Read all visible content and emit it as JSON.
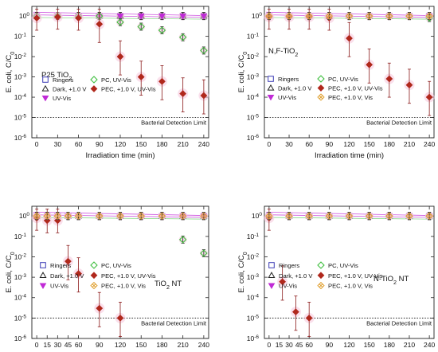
{
  "colors": {
    "ringers": "#3b3bb5",
    "dark": "#222222",
    "uvvis": "#c02ad6",
    "pc": "#3fbf3f",
    "pec_uvvis": "#b0281c",
    "pec_vis": "#e0a030",
    "halo": "#f6c6dd",
    "errorbar": "#8b1a1a"
  },
  "chart_data": [
    {
      "type": "scatter",
      "title": "P25 TiO2",
      "title_display": [
        "P25 TiO",
        "2"
      ],
      "xlabel": "Irradiation time (min)",
      "ylabel": "E. coli, C/C0",
      "ylabel_display": [
        "E. coli, C/C",
        "0"
      ],
      "y_scale": "log",
      "ylim": [
        1e-06,
        3
      ],
      "xlim": [
        0,
        240
      ],
      "x_ticks": [
        0,
        30,
        60,
        90,
        120,
        150,
        180,
        210,
        240
      ],
      "y_ticks": [
        1,
        0.1,
        0.01,
        0.001,
        0.0001,
        1e-05,
        1e-06
      ],
      "y_tick_labels": [
        [
          "10",
          "0"
        ],
        [
          "10",
          "-1"
        ],
        [
          "10",
          "-2"
        ],
        [
          "10",
          "-3"
        ],
        [
          "10",
          "-4"
        ],
        [
          "10",
          "-5"
        ],
        [
          "10",
          "-6"
        ]
      ],
      "detection_limit": 1e-05,
      "detection_limit_label": "Bacterial Detection Limit",
      "legend_columns": 2,
      "series": [
        {
          "name": "Ringers",
          "key": "ringers",
          "marker": "square",
          "x": [
            0,
            30,
            60,
            90,
            120,
            150,
            180,
            210,
            240
          ],
          "y": [
            1,
            1,
            1,
            1,
            1,
            1,
            1,
            1,
            1
          ]
        },
        {
          "name": "Dark, +1.0 V",
          "key": "dark",
          "marker": "triangle-up",
          "x": [
            0,
            30,
            60,
            90,
            120,
            150,
            180,
            210,
            240
          ],
          "y": [
            1,
            1,
            1,
            1,
            1,
            1,
            1,
            1,
            1
          ]
        },
        {
          "name": "UV-Vis",
          "key": "uvvis",
          "marker": "triangle-down",
          "x": [
            0,
            30,
            60,
            90,
            120,
            150,
            180,
            210,
            240
          ],
          "y": [
            1,
            1,
            1,
            1,
            1,
            1,
            1,
            1,
            1
          ]
        },
        {
          "name": "PC, UV-Vis",
          "key": "pc",
          "marker": "diamond-open",
          "x": [
            0,
            30,
            60,
            90,
            120,
            150,
            180,
            210,
            240
          ],
          "y": [
            1,
            1,
            1,
            1,
            0.5,
            0.3,
            0.2,
            0.09,
            0.02
          ]
        },
        {
          "name": "PEC, +1.0 V, UV-Vis",
          "key": "pec_uvvis",
          "marker": "diamond",
          "x": [
            0,
            30,
            60,
            90,
            120,
            150,
            180,
            210,
            240
          ],
          "y": [
            0.8,
            0.9,
            0.8,
            0.4,
            0.01,
            0.001,
            0.0006,
            0.00015,
            0.00012
          ]
        }
      ]
    },
    {
      "type": "scatter",
      "title": "N,F-TiO2",
      "title_display": [
        "N,F-TiO",
        "2"
      ],
      "xlabel": "Irradiation time (min)",
      "ylabel": "E. coli, C/C0",
      "ylabel_display": [
        "E. coli, C/C",
        "0"
      ],
      "y_scale": "log",
      "ylim": [
        1e-06,
        3
      ],
      "xlim": [
        0,
        240
      ],
      "x_ticks": [
        0,
        30,
        60,
        90,
        120,
        150,
        180,
        210,
        240
      ],
      "y_ticks": [
        1,
        0.1,
        0.01,
        0.001,
        0.0001,
        1e-05,
        1e-06
      ],
      "y_tick_labels": [
        [
          "10",
          "0"
        ],
        [
          "10",
          "-1"
        ],
        [
          "10",
          "-2"
        ],
        [
          "10",
          "-3"
        ],
        [
          "10",
          "-4"
        ],
        [
          "10",
          "-5"
        ],
        [
          "10",
          "-6"
        ]
      ],
      "detection_limit": 1e-05,
      "detection_limit_label": "Bacterial Detection Limit",
      "legend_columns": 2,
      "series": [
        {
          "name": "Ringers",
          "key": "ringers",
          "marker": "square",
          "x": [
            0,
            30,
            60,
            90,
            120,
            150,
            180,
            210,
            240
          ],
          "y": [
            1,
            1,
            1,
            1,
            1,
            1,
            1,
            1,
            1
          ]
        },
        {
          "name": "Dark, +1.0 V",
          "key": "dark",
          "marker": "triangle-up",
          "x": [
            0,
            30,
            60,
            90,
            120,
            150,
            180,
            210,
            240
          ],
          "y": [
            1,
            1,
            1,
            1,
            1,
            1,
            1,
            1,
            1
          ]
        },
        {
          "name": "UV-Vis",
          "key": "uvvis",
          "marker": "triangle-down",
          "x": [
            0,
            30,
            60,
            90,
            120,
            150,
            180,
            210,
            240
          ],
          "y": [
            1,
            1,
            1,
            1,
            1,
            1,
            1,
            1,
            1
          ]
        },
        {
          "name": "PC, UV-Vis",
          "key": "pc",
          "marker": "diamond-open",
          "x": [
            0,
            30,
            60,
            90,
            120,
            150,
            180,
            210,
            240
          ],
          "y": [
            1,
            1,
            1,
            1,
            1,
            1,
            1,
            1,
            0.8
          ]
        },
        {
          "name": "PEC, +1.0 V, UV-Vis",
          "key": "pec_uvvis",
          "marker": "diamond",
          "x": [
            0,
            30,
            60,
            90,
            120,
            150,
            180,
            210,
            240
          ],
          "y": [
            0.9,
            0.9,
            0.9,
            0.8,
            0.08,
            0.004,
            0.0008,
            0.0004,
            0.0001
          ]
        },
        {
          "name": "PEC, +1.0 V, Vis",
          "key": "pec_vis",
          "marker": "diamond-x",
          "x": [
            0,
            30,
            60,
            90,
            120,
            150,
            180,
            210,
            240
          ],
          "y": [
            1,
            1,
            1,
            1,
            1,
            1,
            1,
            1,
            1
          ]
        }
      ]
    },
    {
      "type": "scatter",
      "title": "TiO2 NT",
      "title_display": [
        "TiO",
        "2",
        " NT"
      ],
      "xlabel": "Irradiation time (min)",
      "ylabel": "E. coli, C/C0",
      "ylabel_display": [
        "E. coli, C/C",
        "0"
      ],
      "y_scale": "log",
      "ylim": [
        1e-06,
        3
      ],
      "xlim": [
        0,
        240
      ],
      "x_ticks": [
        0,
        30,
        60,
        90,
        120,
        150,
        180,
        210,
        240
      ],
      "minor_x_ticks": [
        15,
        45
      ],
      "x_tick_labels_extra": [
        "15",
        "45"
      ],
      "y_ticks": [
        1,
        0.1,
        0.01,
        0.001,
        0.0001,
        1e-05,
        1e-06
      ],
      "y_tick_labels": [
        [
          "10",
          "0"
        ],
        [
          "10",
          "-1"
        ],
        [
          "10",
          "-2"
        ],
        [
          "10",
          "-3"
        ],
        [
          "10",
          "-4"
        ],
        [
          "10",
          "-5"
        ],
        [
          "10",
          "-6"
        ]
      ],
      "detection_limit": 1e-05,
      "detection_limit_label": "Bacterial Detection Limit",
      "legend_columns": 2,
      "series": [
        {
          "name": "Ringers",
          "key": "ringers",
          "marker": "square",
          "x": [
            0,
            15,
            30,
            45,
            60,
            90,
            120,
            150,
            180,
            210,
            240
          ],
          "y": [
            1,
            1,
            1,
            1,
            1,
            1,
            1,
            1,
            1,
            1,
            1
          ]
        },
        {
          "name": "Dark, +1.0 V",
          "key": "dark",
          "marker": "triangle-up",
          "x": [
            0,
            15,
            30,
            45,
            60,
            90,
            120,
            150,
            180,
            210,
            240
          ],
          "y": [
            1,
            1,
            1,
            1,
            1,
            1,
            1,
            1,
            1,
            1,
            1
          ]
        },
        {
          "name": "UV-Vis",
          "key": "uvvis",
          "marker": "triangle-down",
          "x": [
            0,
            15,
            30,
            45,
            60,
            90,
            120,
            150,
            180,
            210,
            240
          ],
          "y": [
            1,
            1,
            1,
            1,
            1,
            1,
            1,
            1,
            1,
            1,
            1
          ]
        },
        {
          "name": "PC, UV-Vis",
          "key": "pc",
          "marker": "diamond-open",
          "x": [
            0,
            15,
            30,
            45,
            60,
            90,
            120,
            150,
            180,
            210,
            240
          ],
          "y": [
            1,
            1,
            1,
            1,
            1,
            1,
            1,
            1,
            1,
            0.07,
            0.015
          ]
        },
        {
          "name": "PEC, +1.0 V, UV-Vis",
          "key": "pec_uvvis",
          "marker": "diamond",
          "x": [
            0,
            15,
            30,
            45,
            60,
            90,
            120
          ],
          "y": [
            0.8,
            0.6,
            0.6,
            0.006,
            0.0015,
            3e-05,
            1e-05
          ]
        },
        {
          "name": "PEC, +1.0 V, Vis",
          "key": "pec_vis",
          "marker": "diamond-x",
          "x": [
            0,
            15,
            30,
            45,
            60,
            90,
            120,
            150,
            180,
            210,
            240
          ],
          "y": [
            1,
            1,
            1,
            1,
            1,
            1,
            1,
            1,
            1,
            1,
            1
          ]
        }
      ]
    },
    {
      "type": "scatter",
      "title": "N-TiO2 NT",
      "title_display": [
        "N-TiO",
        "2",
        " NT"
      ],
      "xlabel": "Irradiation time (min)",
      "ylabel": "E. coli, C/C0",
      "ylabel_display": [
        "E. coli, C/C",
        "0"
      ],
      "y_scale": "log",
      "ylim": [
        1e-06,
        3
      ],
      "xlim": [
        0,
        240
      ],
      "x_ticks": [
        0,
        30,
        60,
        90,
        120,
        150,
        180,
        210,
        240
      ],
      "minor_x_ticks": [
        15,
        45
      ],
      "x_tick_labels_extra": [
        "15",
        "45"
      ],
      "y_ticks": [
        1,
        0.1,
        0.01,
        0.001,
        0.0001,
        1e-05,
        1e-06
      ],
      "y_tick_labels": [
        [
          "10",
          "0"
        ],
        [
          "10",
          "-1"
        ],
        [
          "10",
          "-2"
        ],
        [
          "10",
          "-3"
        ],
        [
          "10",
          "-4"
        ],
        [
          "10",
          "-5"
        ],
        [
          "10",
          "-6"
        ]
      ],
      "detection_limit": 1e-05,
      "detection_limit_label": "Bacterial Detection Limit",
      "legend_columns": 2,
      "series": [
        {
          "name": "Ringers",
          "key": "ringers",
          "marker": "square",
          "x": [
            0,
            30,
            60,
            90,
            120,
            150,
            180,
            210,
            240
          ],
          "y": [
            1,
            1,
            1,
            1,
            1,
            1,
            1,
            1,
            1
          ]
        },
        {
          "name": "Dark, +1.0 V",
          "key": "dark",
          "marker": "triangle-up",
          "x": [
            0,
            30,
            60,
            90,
            120,
            150,
            180,
            210,
            240
          ],
          "y": [
            1,
            1,
            1,
            1,
            1,
            1,
            1,
            1,
            1
          ]
        },
        {
          "name": "UV-Vis",
          "key": "uvvis",
          "marker": "triangle-down",
          "x": [
            0,
            30,
            60,
            90,
            120,
            150,
            180,
            210,
            240
          ],
          "y": [
            1,
            1,
            1,
            1,
            1,
            1,
            1,
            1,
            1
          ]
        },
        {
          "name": "PC, UV-Vis",
          "key": "pc",
          "marker": "diamond-open",
          "x": [
            0,
            30,
            60,
            90,
            120,
            150,
            180,
            210,
            240
          ],
          "y": [
            1,
            1,
            1,
            1,
            1,
            1,
            1,
            1,
            1
          ]
        },
        {
          "name": "PEC, +1.0 V, UV-Vis",
          "key": "pec_uvvis",
          "marker": "diamond",
          "x": [
            0,
            20,
            40,
            60
          ],
          "y": [
            0.8,
            0.0006,
            2e-05,
            1e-05
          ]
        },
        {
          "name": "PEC, +1.0 V, Vis",
          "key": "pec_vis",
          "marker": "diamond-x",
          "x": [
            0,
            30,
            60,
            90,
            120,
            150,
            180,
            210,
            240
          ],
          "y": [
            1,
            1,
            1,
            1,
            1,
            1,
            1,
            1,
            1
          ]
        }
      ]
    }
  ]
}
